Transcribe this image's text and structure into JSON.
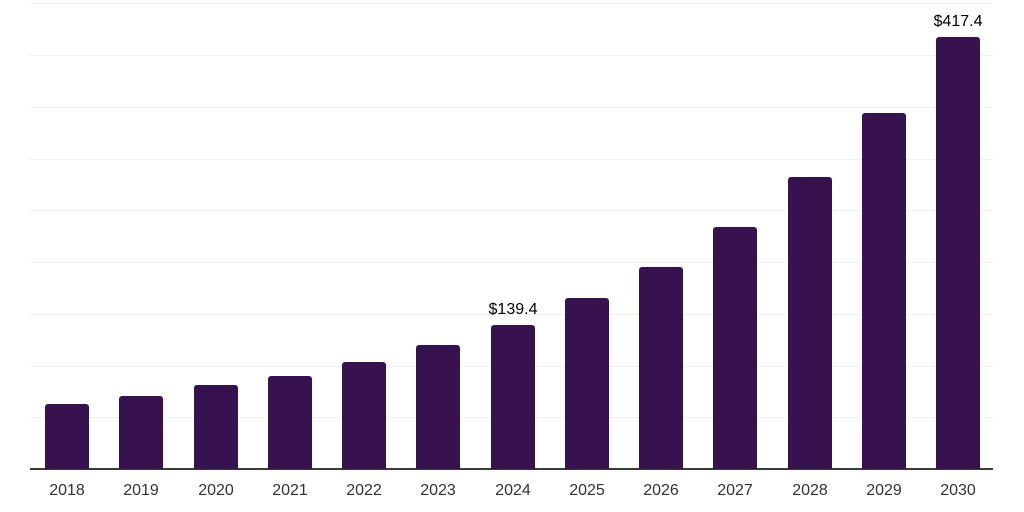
{
  "chart_data": {
    "type": "bar",
    "title": "",
    "xlabel": "",
    "ylabel": "",
    "categories": [
      "2018",
      "2019",
      "2020",
      "2021",
      "2022",
      "2023",
      "2024",
      "2025",
      "2026",
      "2027",
      "2028",
      "2029",
      "2030"
    ],
    "values": [
      62.5,
      70.5,
      81.2,
      90.2,
      103.1,
      119.8,
      139.4,
      164.9,
      195.5,
      233.8,
      282.3,
      343.5,
      417.4
    ],
    "value_labels": {
      "2024": "$139.4",
      "2030": "$417.4"
    },
    "ylim": [
      0,
      452
    ],
    "gridline_step": 50,
    "grid": "horizontal",
    "legend_position": "none",
    "colors": {
      "bar": "#36124E",
      "axis_line": "#3a3a3a",
      "gridline": "#f0f0f0",
      "x_label_text": "#333333",
      "value_label_text": "#000000",
      "background": "#ffffff"
    }
  }
}
